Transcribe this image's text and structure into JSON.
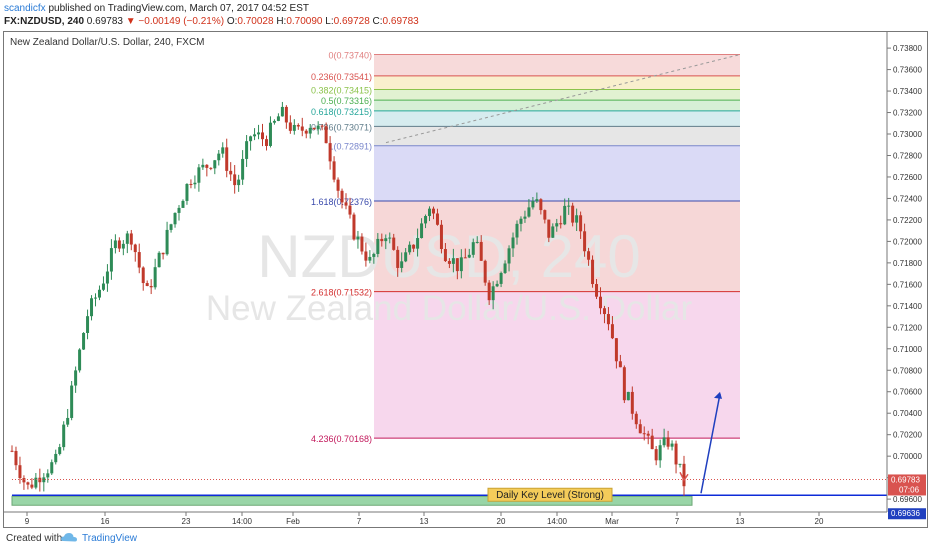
{
  "header": {
    "author": "scandicfx",
    "published_text": "published on TradingView.com, March 07, 2017 04:52 EST",
    "symbol": "FX:NZDUSD, 240",
    "last": "0.69783",
    "change": "−0.00149 (−0.21%)",
    "o_label": "O:",
    "o_value": "0.70028",
    "h_label": "H:",
    "h_value": "0.70090",
    "l_label": "L:",
    "l_value": "0.69728",
    "c_label": "C:",
    "c_value": "0.69783"
  },
  "chart_data": {
    "type": "candlestick",
    "title": "New Zealand Dollar/U.S. Dollar, 240, FXCM",
    "watermark_symbol": "NZDUSD, 240",
    "watermark_name": "New Zealand Dollar/U.S. Dollar",
    "y_ticks": [
      "0.73800",
      "0.73600",
      "0.73400",
      "0.73200",
      "0.73000",
      "0.72800",
      "0.72600",
      "0.72400",
      "0.72200",
      "0.72000",
      "0.71800",
      "0.71600",
      "0.71400",
      "0.71200",
      "0.71000",
      "0.70800",
      "0.70600",
      "0.70400",
      "0.70200",
      "0.70000",
      "0.69800",
      "0.69600"
    ],
    "y_tick_values": [
      0.738,
      0.736,
      0.734,
      0.732,
      0.73,
      0.728,
      0.726,
      0.724,
      0.722,
      0.72,
      0.718,
      0.716,
      0.714,
      0.712,
      0.71,
      0.708,
      0.706,
      0.704,
      0.702,
      0.7,
      0.698,
      0.696
    ],
    "ylim": [
      0.6948,
      0.7395
    ],
    "x_ticks": [
      "9",
      "16",
      "23",
      "14:00",
      "Feb",
      "7",
      "13",
      "20",
      "14:00",
      "Mar",
      "7",
      "13",
      "20"
    ],
    "price_points": [
      0.7005,
      0.697,
      0.6985,
      0.6995,
      0.706,
      0.713,
      0.716,
      0.72,
      0.7205,
      0.715,
      0.719,
      0.723,
      0.726,
      0.727,
      0.7285,
      0.725,
      0.73,
      0.7295,
      0.732,
      0.73,
      0.731,
      0.7298,
      0.724,
      0.7205,
      0.718,
      0.721,
      0.7175,
      0.72,
      0.7235,
      0.719,
      0.7175,
      0.72,
      0.715,
      0.7185,
      0.722,
      0.724,
      0.7205,
      0.723,
      0.7215,
      0.716,
      0.7125,
      0.706,
      0.703,
      0.7,
      0.7015,
      0.6975
    ],
    "current_price": "0.69783",
    "current_countdown": "07:06",
    "key_level_price": "0.69636",
    "key_level_label": "Daily Key Level (Strong)",
    "fib_levels": [
      {
        "label": "0(0.73740)",
        "value": 0.7374,
        "color": "#e08080",
        "fill": "#f6d3d3"
      },
      {
        "label": "0.236(0.73541)",
        "value": 0.73541,
        "color": "#d9534f",
        "fill": "#f8ecc4"
      },
      {
        "label": "0.382(0.73415)",
        "value": 0.73415,
        "color": "#8bc34a",
        "fill": "#dcefc9"
      },
      {
        "label": "0.5(0.73316)",
        "value": 0.73316,
        "color": "#4caf50",
        "fill": "#cfeccf"
      },
      {
        "label": "0.618(0.73215)",
        "value": 0.73215,
        "color": "#26a69a",
        "fill": "#cfe9ec"
      },
      {
        "label": "0.786(0.73071)",
        "value": 0.73071,
        "color": "#607d8b",
        "fill": "#e2e2e2"
      },
      {
        "label": "1(0.72891)",
        "value": 0.72891,
        "color": "#7986cb",
        "fill": "#d3d3f5"
      },
      {
        "label": "1.618(0.72376)",
        "value": 0.72376,
        "color": "#3949ab",
        "fill": "#f5d0d0"
      },
      {
        "label": "2.618(0.71532)",
        "value": 0.71532,
        "color": "#d32f2f",
        "fill": "#f6d0ea"
      },
      {
        "label": "4.236(0.70168)",
        "value": 0.70168,
        "color": "#c2185b",
        "fill": "#f6d0ea"
      }
    ]
  },
  "footer": {
    "created_with": "Created with",
    "brand": "TradingView"
  },
  "colors": {
    "up": "#2e8b57",
    "down": "#c0392b",
    "key_level": "#0d2bd8",
    "zone": "#8fd19e"
  }
}
